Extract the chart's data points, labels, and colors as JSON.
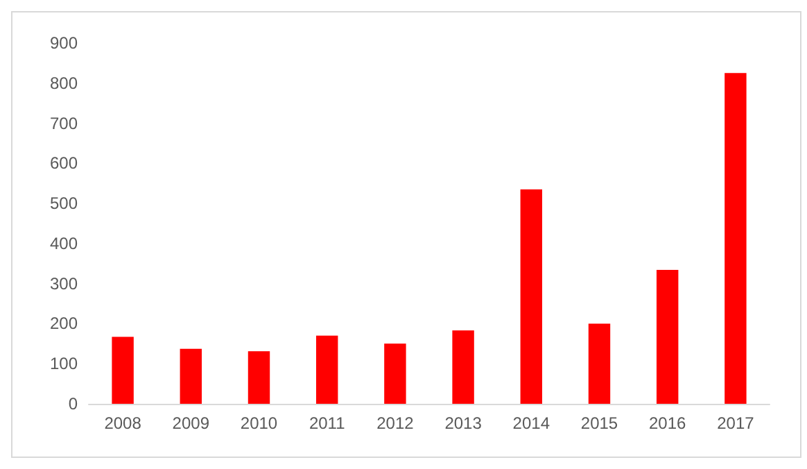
{
  "chart_data": {
    "type": "bar",
    "categories": [
      "2008",
      "2009",
      "2010",
      "2011",
      "2012",
      "2013",
      "2014",
      "2015",
      "2016",
      "2017"
    ],
    "values": [
      167,
      137,
      131,
      170,
      150,
      183,
      535,
      200,
      334,
      825
    ],
    "color": "#ff0000",
    "ylim": [
      0,
      900
    ],
    "yticks": [
      0,
      100,
      200,
      300,
      400,
      500,
      600,
      700,
      800,
      900
    ]
  }
}
